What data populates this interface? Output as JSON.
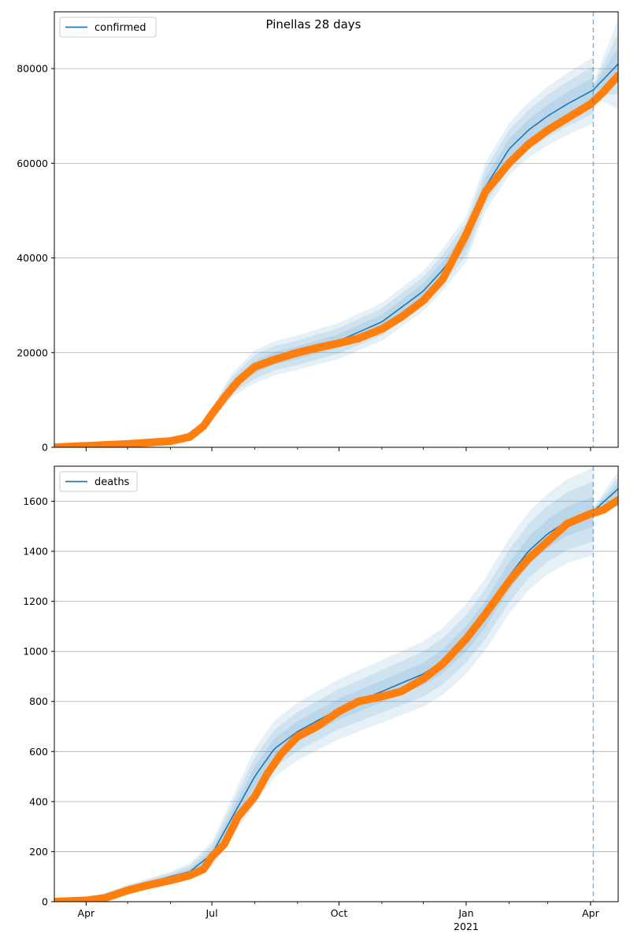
{
  "figure": {
    "title": "Pinellas 28 days"
  },
  "colors": {
    "model_line": "#1f77b4",
    "observed_points": "#ff7f0e",
    "interval_band": "#1f77b4",
    "grid": "#b0b0b0",
    "forecast_marker": "#1f77b4"
  },
  "x_axis": {
    "range": [
      "2020-03-09",
      "2021-04-21"
    ],
    "tick_labels": [
      {
        "date": "2020-04-01",
        "label": "Apr",
        "sublabel": ""
      },
      {
        "date": "2020-07-01",
        "label": "Jul",
        "sublabel": ""
      },
      {
        "date": "2020-10-01",
        "label": "Oct",
        "sublabel": ""
      },
      {
        "date": "2021-01-01",
        "label": "Jan",
        "sublabel": "2021"
      },
      {
        "date": "2021-04-01",
        "label": "Apr",
        "sublabel": ""
      }
    ],
    "minor_ticks": [
      "2020-05-01",
      "2020-06-01",
      "2020-08-01",
      "2020-09-01",
      "2020-11-01",
      "2020-12-01",
      "2021-02-01",
      "2021-03-01"
    ],
    "forecast_start": "2021-04-03"
  },
  "chart_data": [
    {
      "type": "line",
      "panel": "top",
      "ylim": [
        0,
        92000
      ],
      "yticks": [
        0,
        20000,
        40000,
        60000,
        80000
      ],
      "grid": "horizontal",
      "legend": {
        "position": "top-left",
        "entries": [
          "confirmed"
        ]
      },
      "series": [
        {
          "name": "confirmed",
          "kind": "model",
          "x": [
            "2020-03-09",
            "2020-04-01",
            "2020-05-01",
            "2020-06-01",
            "2020-06-20",
            "2020-07-01",
            "2020-07-15",
            "2020-08-01",
            "2020-08-15",
            "2020-09-01",
            "2020-10-01",
            "2020-11-01",
            "2020-12-01",
            "2020-12-15",
            "2021-01-01",
            "2021-01-15",
            "2021-02-01",
            "2021-02-15",
            "2021-03-01",
            "2021-03-15",
            "2021-04-03",
            "2021-04-21"
          ],
          "y": [
            0,
            300,
            600,
            1200,
            3000,
            7000,
            13000,
            17000,
            18800,
            20000,
            22500,
            26500,
            33000,
            37500,
            44000,
            55000,
            63000,
            67000,
            70000,
            72500,
            75500,
            81000
          ]
        },
        {
          "kind": "observed",
          "x": [
            "2020-03-09",
            "2020-04-01",
            "2020-05-01",
            "2020-06-01",
            "2020-06-15",
            "2020-06-25",
            "2020-07-01",
            "2020-07-10",
            "2020-07-20",
            "2020-08-01",
            "2020-08-15",
            "2020-09-01",
            "2020-09-15",
            "2020-10-01",
            "2020-10-15",
            "2020-11-01",
            "2020-11-15",
            "2020-12-01",
            "2020-12-15",
            "2021-01-01",
            "2021-01-15",
            "2021-02-01",
            "2021-02-15",
            "2021-03-01",
            "2021-03-15",
            "2021-04-01",
            "2021-04-10",
            "2021-04-21"
          ],
          "y": [
            0,
            300,
            700,
            1300,
            2200,
            4500,
            7000,
            10500,
            14000,
            17000,
            18500,
            20000,
            21000,
            22000,
            23000,
            25000,
            27500,
            31000,
            35500,
            45000,
            54000,
            60000,
            64000,
            67000,
            69500,
            72500,
            75000,
            78500
          ]
        }
      ],
      "intervals": [
        {
          "halfwidths_by_date": [
            [
              "2020-03-09",
              0
            ],
            [
              "2020-06-01",
              300
            ],
            [
              "2020-07-01",
              1500
            ],
            [
              "2020-08-01",
              3500
            ],
            [
              "2020-10-01",
              3800
            ],
            [
              "2020-12-01",
              4200
            ],
            [
              "2021-01-01",
              4800
            ],
            [
              "2021-02-01",
              5500
            ],
            [
              "2021-04-03",
              7000
            ]
          ],
          "future_halfwidths": [
            [
              "2021-04-03",
              1500
            ],
            [
              "2021-04-21",
              9500
            ]
          ]
        },
        {
          "halfwidths_by_date": [
            [
              "2020-03-09",
              0
            ],
            [
              "2020-06-01",
              200
            ],
            [
              "2020-07-01",
              1000
            ],
            [
              "2020-08-01",
              2500
            ],
            [
              "2020-10-01",
              2700
            ],
            [
              "2020-12-01",
              3000
            ],
            [
              "2021-01-01",
              3400
            ],
            [
              "2021-02-01",
              4000
            ],
            [
              "2021-04-03",
              5000
            ]
          ],
          "future_halfwidths": [
            [
              "2021-04-03",
              900
            ],
            [
              "2021-04-21",
              6500
            ]
          ]
        },
        {
          "halfwidths_by_date": [
            [
              "2020-03-09",
              0
            ],
            [
              "2020-06-01",
              100
            ],
            [
              "2020-07-01",
              500
            ],
            [
              "2020-08-01",
              1300
            ],
            [
              "2020-10-01",
              1400
            ],
            [
              "2020-12-01",
              1600
            ],
            [
              "2021-01-01",
              1800
            ],
            [
              "2021-02-01",
              2100
            ],
            [
              "2021-04-03",
              2700
            ]
          ],
          "future_halfwidths": [
            [
              "2021-04-03",
              500
            ],
            [
              "2021-04-21",
              3500
            ]
          ]
        }
      ]
    },
    {
      "type": "line",
      "panel": "bottom",
      "ylim": [
        0,
        1740
      ],
      "yticks": [
        0,
        200,
        400,
        600,
        800,
        1000,
        1200,
        1400,
        1600
      ],
      "grid": "horizontal",
      "legend": {
        "position": "top-left",
        "entries": [
          "deaths"
        ]
      },
      "series": [
        {
          "name": "deaths",
          "kind": "model",
          "x": [
            "2020-03-09",
            "2020-04-01",
            "2020-05-01",
            "2020-06-01",
            "2020-06-15",
            "2020-07-01",
            "2020-07-15",
            "2020-08-01",
            "2020-08-15",
            "2020-09-01",
            "2020-10-01",
            "2020-11-01",
            "2020-12-01",
            "2020-12-15",
            "2021-01-01",
            "2021-01-15",
            "2021-02-01",
            "2021-02-15",
            "2021-03-01",
            "2021-03-15",
            "2021-04-03",
            "2021-04-21"
          ],
          "y": [
            0,
            5,
            55,
            100,
            120,
            190,
            330,
            500,
            610,
            680,
            770,
            840,
            910,
            960,
            1050,
            1150,
            1300,
            1400,
            1470,
            1520,
            1560,
            1650
          ]
        },
        {
          "kind": "observed",
          "x": [
            "2020-03-09",
            "2020-04-01",
            "2020-04-15",
            "2020-05-01",
            "2020-05-15",
            "2020-06-01",
            "2020-06-15",
            "2020-06-25",
            "2020-07-01",
            "2020-07-10",
            "2020-07-20",
            "2020-08-01",
            "2020-08-10",
            "2020-08-20",
            "2020-09-01",
            "2020-09-15",
            "2020-10-01",
            "2020-10-15",
            "2020-11-01",
            "2020-11-15",
            "2020-12-01",
            "2020-12-15",
            "2021-01-01",
            "2021-01-15",
            "2021-02-01",
            "2021-02-15",
            "2021-03-01",
            "2021-03-15",
            "2021-04-01",
            "2021-04-10",
            "2021-04-21"
          ],
          "y": [
            0,
            5,
            15,
            45,
            65,
            85,
            105,
            130,
            180,
            230,
            340,
            420,
            510,
            590,
            660,
            700,
            760,
            800,
            820,
            840,
            890,
            950,
            1050,
            1150,
            1280,
            1370,
            1440,
            1510,
            1550,
            1565,
            1605
          ]
        }
      ],
      "intervals": [
        {
          "halfwidths_by_date": [
            [
              "2020-03-09",
              0
            ],
            [
              "2020-06-01",
              20
            ],
            [
              "2020-07-01",
              50
            ],
            [
              "2020-08-01",
              110
            ],
            [
              "2020-10-01",
              120
            ],
            [
              "2020-12-01",
              130
            ],
            [
              "2021-01-01",
              140
            ],
            [
              "2021-02-01",
              150
            ],
            [
              "2021-04-03",
              175
            ]
          ],
          "future_halfwidths": [
            [
              "2021-04-03",
              15
            ],
            [
              "2021-04-21",
              70
            ]
          ]
        },
        {
          "halfwidths_by_date": [
            [
              "2020-03-09",
              0
            ],
            [
              "2020-06-01",
              14
            ],
            [
              "2020-07-01",
              35
            ],
            [
              "2020-08-01",
              75
            ],
            [
              "2020-10-01",
              80
            ],
            [
              "2020-12-01",
              90
            ],
            [
              "2021-01-01",
              95
            ],
            [
              "2021-02-01",
              105
            ],
            [
              "2021-04-03",
              120
            ]
          ],
          "future_halfwidths": [
            [
              "2021-04-03",
              10
            ],
            [
              "2021-04-21",
              45
            ]
          ]
        },
        {
          "halfwidths_by_date": [
            [
              "2020-03-09",
              0
            ],
            [
              "2020-06-01",
              7
            ],
            [
              "2020-07-01",
              18
            ],
            [
              "2020-08-01",
              40
            ],
            [
              "2020-10-01",
              42
            ],
            [
              "2020-12-01",
              45
            ],
            [
              "2021-01-01",
              50
            ],
            [
              "2021-02-01",
              55
            ],
            [
              "2021-04-03",
              60
            ]
          ],
          "future_halfwidths": [
            [
              "2021-04-03",
              5
            ],
            [
              "2021-04-21",
              22
            ]
          ]
        }
      ]
    }
  ]
}
